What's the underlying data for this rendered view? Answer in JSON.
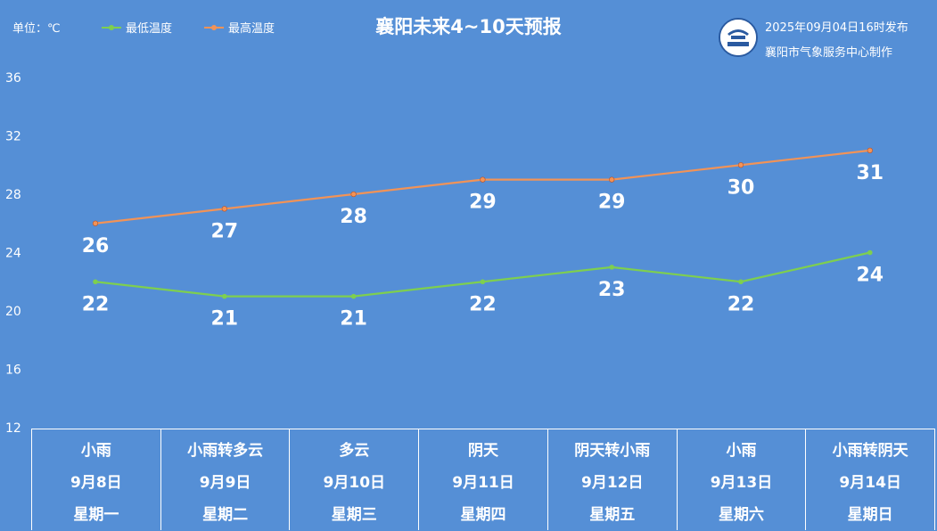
{
  "unit_label": "单位：℃",
  "chart_data": {
    "type": "line",
    "title": "襄阳未来4~10天预报",
    "categories": [
      "9月8日",
      "9月9日",
      "9月10日",
      "9月11日",
      "9月12日",
      "9月13日",
      "9月14日"
    ],
    "series": [
      {
        "name": "最低温度",
        "color": "#7ecf4f",
        "values": [
          22,
          21,
          21,
          22,
          23,
          22,
          24
        ]
      },
      {
        "name": "最高温度",
        "color": "#f29357",
        "values": [
          26,
          27,
          28,
          29,
          29,
          30,
          31
        ]
      }
    ],
    "yticks": [
      "36",
      "32",
      "28",
      "24",
      "20",
      "16",
      "12"
    ],
    "ylim": [
      12,
      36
    ],
    "grid": false,
    "legend": "top-left"
  },
  "publish": {
    "time": "2025年09月04日16时发布",
    "org": "襄阳市气象服务中心制作"
  },
  "forecast": [
    {
      "weather": "小雨",
      "date": "9月8日",
      "weekday": "星期一"
    },
    {
      "weather": "小雨转多云",
      "date": "9月9日",
      "weekday": "星期二"
    },
    {
      "weather": "多云",
      "date": "9月10日",
      "weekday": "星期三"
    },
    {
      "weather": "阴天",
      "date": "9月11日",
      "weekday": "星期四"
    },
    {
      "weather": "阴天转小雨",
      "date": "9月12日",
      "weekday": "星期五"
    },
    {
      "weather": "小雨",
      "date": "9月13日",
      "weekday": "星期六"
    },
    {
      "weather": "小雨转阴天",
      "date": "9月14日",
      "weekday": "星期日"
    }
  ]
}
